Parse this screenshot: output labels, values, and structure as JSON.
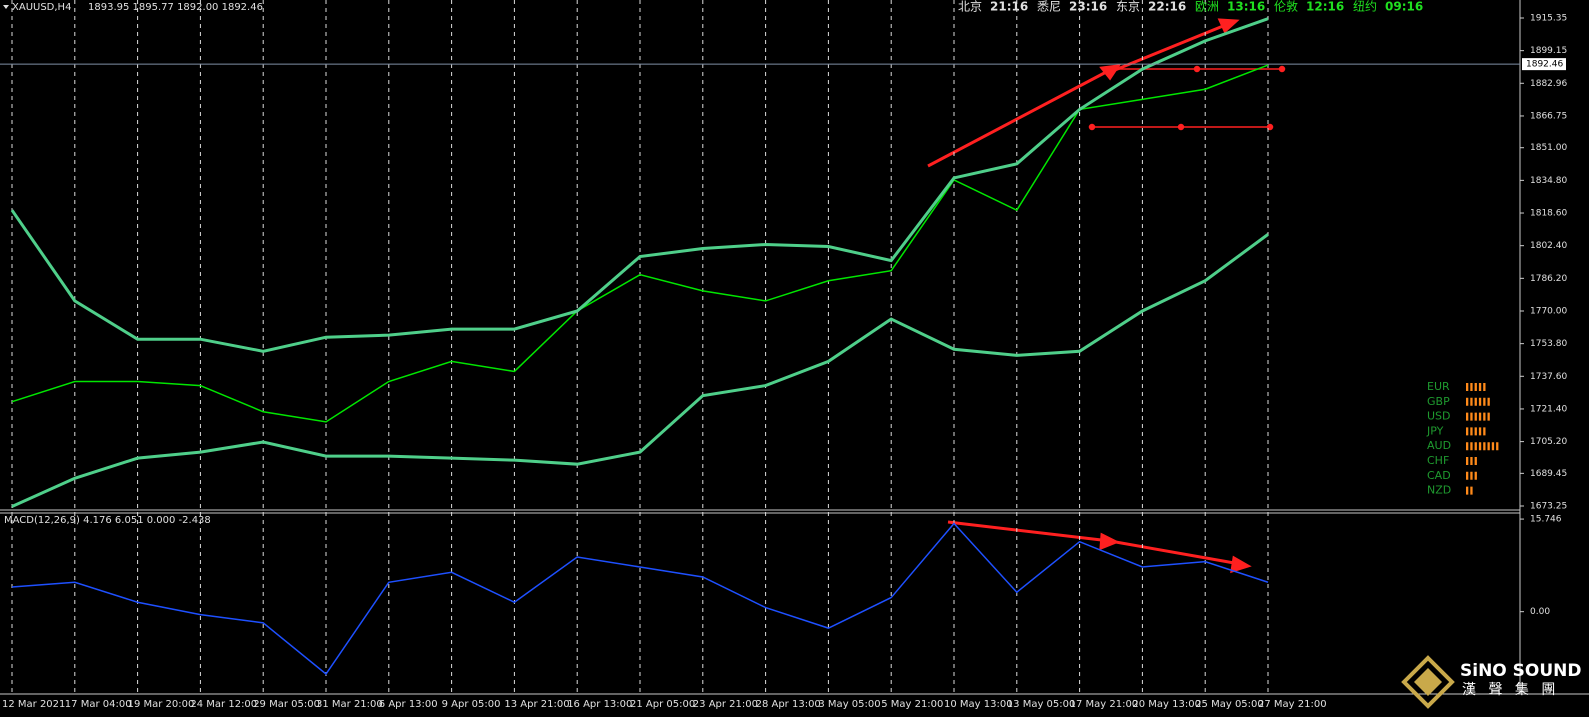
{
  "header": {
    "symbol": "XAUUSD,H4",
    "ohlc": "1893.95 1895.77 1892.00 1892.46"
  },
  "clocks": [
    {
      "city": "北京",
      "time": "21:16"
    },
    {
      "city": "悉尼",
      "time": "23:16"
    },
    {
      "city": "东京",
      "time": "22:16"
    },
    {
      "city": "欧洲",
      "time": "13:16"
    },
    {
      "city": "伦敦",
      "time": "12:16"
    },
    {
      "city": "纽约",
      "time": "09:16"
    }
  ],
  "chart_data": [
    {
      "type": "line",
      "categories": [
        "12 Mar 2021",
        "17 Mar 04:00",
        "19 Mar 20:00",
        "24 Mar 12:00",
        "29 Mar 05:00",
        "31 Mar 21:00",
        "6 Apr 13:00",
        "9 Apr 05:00",
        "13 Apr 21:00",
        "16 Apr 13:00",
        "21 Apr 05:00",
        "23 Apr 21:00",
        "28 Apr 13:00",
        "3 May 05:00",
        "5 May 21:00",
        "10 May 13:00",
        "13 May 05:00",
        "17 May 21:00",
        "20 May 13:00",
        "25 May 05:00",
        "27 May 21:00"
      ],
      "series": [
        {
          "color": "#00e600",
          "values": [
            1725,
            1735,
            1735,
            1733,
            1720,
            1715,
            1735,
            1745,
            1740,
            1770,
            1788,
            1780,
            1775,
            1785,
            1790,
            1835,
            1820,
            1870,
            1875,
            1880,
            1892
          ]
        },
        {
          "color": "#4fcf8a",
          "values": [
            1820,
            1775,
            1756,
            1756,
            1750,
            1757,
            1758,
            1761,
            1761,
            1770,
            1797,
            1801,
            1803,
            1802,
            1795,
            1836,
            1843,
            1870,
            1890,
            1904,
            1915
          ]
        },
        {
          "color": "#4fcf8a",
          "values": [
            1673,
            1687,
            1697,
            1700,
            1705,
            1698,
            1698,
            1697,
            1696,
            1694,
            1700,
            1728,
            1733,
            1745,
            1766,
            1751,
            1748,
            1750,
            1770,
            1785,
            1808
          ]
        }
      ],
      "last_price": 1892.46,
      "ylim": [
        1671.27,
        1924.28
      ],
      "yticks": [
        {
          "value": 1915.35,
          "label": "1915.35"
        },
        {
          "value": 1899.15,
          "label": "1899.15"
        },
        {
          "value": 1882.96,
          "label": "1882.96"
        },
        {
          "value": 1866.75,
          "label": "1866.75"
        },
        {
          "value": 1851.0,
          "label": "1851.00"
        },
        {
          "value": 1834.8,
          "label": "1834.80"
        },
        {
          "value": 1818.6,
          "label": "1818.60"
        },
        {
          "value": 1802.4,
          "label": "1802.40"
        },
        {
          "value": 1786.2,
          "label": "1786.20"
        },
        {
          "value": 1770.0,
          "label": "1770.00"
        },
        {
          "value": 1753.8,
          "label": "1753.80"
        },
        {
          "value": 1737.6,
          "label": "1737.60"
        },
        {
          "value": 1721.4,
          "label": "1721.40"
        },
        {
          "value": 1705.2,
          "label": "1705.20"
        },
        {
          "value": 1689.45,
          "label": "1689.45"
        },
        {
          "value": 1673.25,
          "label": "1673.25"
        }
      ],
      "grid": true
    },
    {
      "type": "line",
      "title": "MACD(12,26,9) 4.176 6.051 0.000 -2.438",
      "series": [
        {
          "color": "#1e50ff",
          "values": [
            4.2,
            5.0,
            1.6,
            -0.5,
            -1.9,
            -10.6,
            5.0,
            6.7,
            1.6,
            9.3,
            7.6,
            5.9,
            0.7,
            -2.8,
            2.4,
            15.0,
            3.3,
            11.9,
            7.6,
            8.5,
            5.0
          ]
        }
      ],
      "ylim": [
        -14.0,
        16.78
      ],
      "yticks": [
        15.746,
        {
          "value": 0,
          "label": "0.00"
        }
      ],
      "grid": true
    }
  ],
  "currency_strength": [
    {
      "name": "EUR",
      "level": 5
    },
    {
      "name": "GBP",
      "level": 6
    },
    {
      "name": "USD",
      "level": 6
    },
    {
      "name": "JPY",
      "level": 5
    },
    {
      "name": "AUD",
      "level": 8
    },
    {
      "name": "CHF",
      "level": 3
    },
    {
      "name": "CAD",
      "level": 3
    },
    {
      "name": "NZD",
      "level": 2
    }
  ],
  "logo": {
    "brand": "SiNO SOUND",
    "sub": "漢 聲 集 團"
  }
}
